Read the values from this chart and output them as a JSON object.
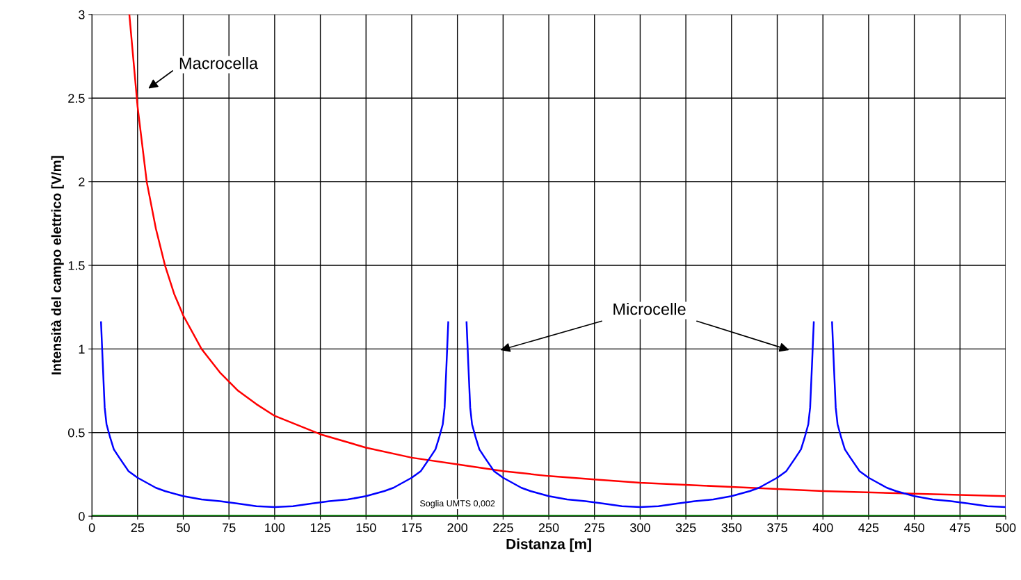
{
  "chart_data": {
    "type": "line",
    "xlabel": "Distanza [m]",
    "ylabel": "Intensità del campo elettrico [V/m]",
    "xlim": [
      0,
      500
    ],
    "xticks": [
      0,
      25,
      50,
      75,
      100,
      125,
      150,
      175,
      200,
      225,
      250,
      275,
      300,
      325,
      350,
      375,
      400,
      425,
      450,
      475,
      500
    ],
    "ylim": [
      0,
      3
    ],
    "yticks": [
      0,
      {
        "value": 0.5,
        "label": "0.5"
      },
      1,
      {
        "value": 1.5,
        "label": "1.5"
      },
      2,
      {
        "value": 2.5,
        "label": "2.5"
      },
      3
    ],
    "grid": true,
    "legend": false,
    "marker": "none",
    "line_style": "solid",
    "series": [
      {
        "color": "#ff0000",
        "x": [
          20.5,
          25,
          30,
          35,
          40,
          45,
          50,
          60,
          70,
          80,
          90,
          100,
          125,
          150,
          175,
          200,
          225,
          250,
          275,
          300,
          350,
          400,
          450,
          500
        ],
        "values": [
          3.0,
          2.45,
          2.0,
          1.72,
          1.5,
          1.33,
          1.2,
          1.0,
          0.86,
          0.75,
          0.67,
          0.6,
          0.49,
          0.41,
          0.35,
          0.31,
          0.27,
          0.24,
          0.22,
          0.2,
          0.175,
          0.15,
          0.135,
          0.12
        ]
      },
      {
        "color": "#0000ff",
        "x": [
          5,
          6,
          7,
          8,
          10,
          12,
          15,
          20,
          25,
          30,
          35,
          40,
          50,
          60,
          70,
          80,
          90,
          100,
          110,
          120,
          130,
          140,
          150,
          160,
          165,
          170,
          175,
          180,
          185,
          188,
          190,
          192,
          193,
          194,
          195,
          200,
          205,
          206,
          207,
          208,
          210,
          212,
          215,
          220,
          225,
          230,
          235,
          240,
          250,
          260,
          270,
          280,
          290,
          300,
          310,
          320,
          330,
          340,
          350,
          360,
          365,
          370,
          375,
          380,
          385,
          388,
          390,
          392,
          393,
          394,
          395,
          400,
          405,
          406,
          407,
          408,
          410,
          412,
          415,
          420,
          425,
          430,
          435,
          440,
          450,
          460,
          470,
          480,
          490,
          500
        ],
        "values": [
          1.16,
          0.9,
          0.65,
          0.55,
          0.47,
          0.4,
          0.35,
          0.27,
          0.23,
          0.2,
          0.17,
          0.15,
          0.12,
          0.1,
          0.09,
          0.075,
          0.06,
          0.055,
          0.06,
          0.075,
          0.09,
          0.1,
          0.12,
          0.15,
          0.17,
          0.2,
          0.23,
          0.27,
          0.35,
          0.4,
          0.47,
          0.55,
          0.65,
          0.9,
          1.16,
          null,
          1.16,
          0.9,
          0.65,
          0.55,
          0.47,
          0.4,
          0.35,
          0.27,
          0.23,
          0.2,
          0.17,
          0.15,
          0.12,
          0.1,
          0.09,
          0.075,
          0.06,
          0.055,
          0.06,
          0.075,
          0.09,
          0.1,
          0.12,
          0.15,
          0.17,
          0.2,
          0.23,
          0.27,
          0.35,
          0.4,
          0.47,
          0.55,
          0.65,
          0.9,
          1.16,
          null,
          1.16,
          0.9,
          0.65,
          0.55,
          0.47,
          0.4,
          0.35,
          0.27,
          0.23,
          0.2,
          0.17,
          0.15,
          0.12,
          0.1,
          0.09,
          0.075,
          0.06,
          0.055
        ]
      }
    ],
    "ref_lines": [
      {
        "axis": "y",
        "value": 0.002,
        "label": "Soglia UMTS 0,002",
        "color": "#00aa00",
        "line_style": "solid"
      }
    ],
    "annotations": [
      "Macrocella",
      "Microcelle"
    ]
  }
}
